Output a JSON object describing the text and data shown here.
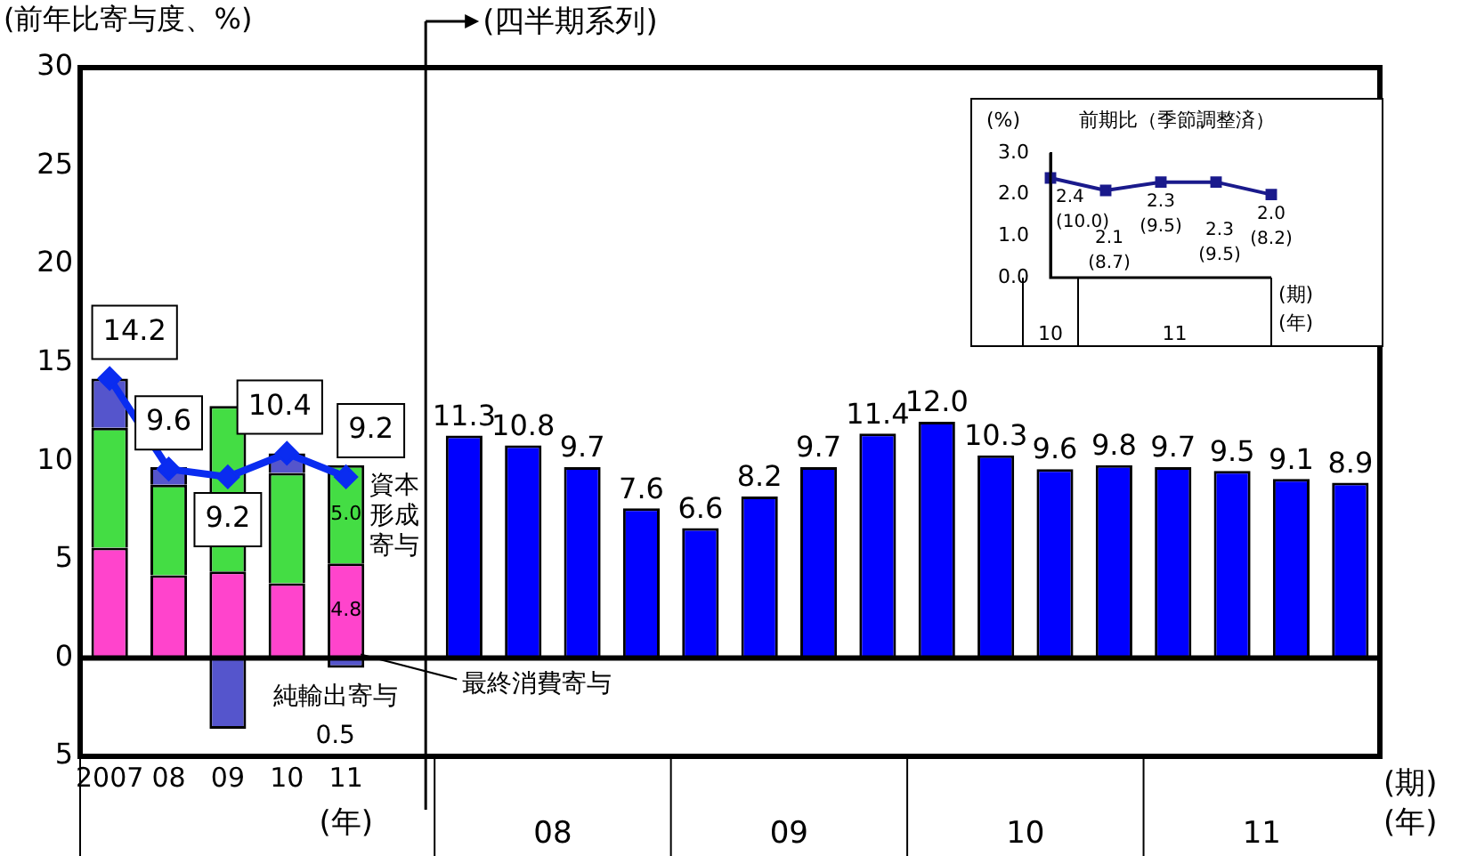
{
  "chart_data": [
    {
      "type": "bar",
      "stacked": true,
      "ylabel": "(前年比寄与度、%)",
      "legend": false,
      "grid": false,
      "marker": "diamond",
      "ylim": [
        -5,
        30
      ],
      "yticks": [
        {
          "value": -5,
          "label": "5"
        },
        0,
        5,
        10,
        15,
        20,
        25,
        30
      ],
      "categories": [
        "2007",
        "08",
        "09",
        "10",
        "11",
        null,
        null,
        null,
        null,
        null,
        null,
        null,
        null,
        null,
        null,
        null,
        null,
        null,
        null,
        null,
        null,
        null
      ],
      "series": [
        {
          "name": "最終消費寄与",
          "color": "#ff44cc",
          "values": [
            5.6,
            4.2,
            4.4,
            3.8,
            4.8,
            null,
            null,
            null,
            null,
            null,
            null,
            null,
            null,
            null,
            null,
            null,
            null,
            null,
            null,
            null,
            null,
            null
          ],
          "value_labels": [
            null,
            null,
            null,
            null,
            "4.8",
            null,
            null,
            null,
            null,
            null,
            null,
            null,
            null,
            null,
            null,
            null,
            null,
            null,
            null,
            null,
            null,
            null
          ]
        },
        {
          "name": "資本形成寄与",
          "color": "#44dd44",
          "values": [
            6.1,
            4.6,
            8.4,
            5.6,
            5.0,
            null,
            null,
            null,
            null,
            null,
            null,
            null,
            null,
            null,
            null,
            null,
            null,
            null,
            null,
            null,
            null,
            null
          ],
          "value_labels": [
            null,
            null,
            null,
            null,
            "5.0",
            null,
            null,
            null,
            null,
            null,
            null,
            null,
            null,
            null,
            null,
            null,
            null,
            null,
            null,
            null,
            null,
            null
          ]
        },
        {
          "name": "純輸出寄与",
          "color": "#5555cc",
          "values": [
            2.5,
            0.9,
            -3.6,
            1.0,
            -0.5,
            null,
            null,
            null,
            null,
            null,
            null,
            null,
            null,
            null,
            null,
            null,
            null,
            null,
            null,
            null,
            null,
            null
          ],
          "value_labels": [
            null,
            null,
            null,
            null,
            null,
            null,
            null,
            null,
            null,
            null,
            null,
            null,
            null,
            null,
            null,
            null,
            null,
            null,
            null,
            null,
            null,
            null
          ]
        },
        {
          "color": "#0000ff",
          "values": [
            null,
            null,
            null,
            null,
            null,
            null,
            11.3,
            10.8,
            9.7,
            7.6,
            6.6,
            8.2,
            9.7,
            11.4,
            12.0,
            10.3,
            9.6,
            9.8,
            9.7,
            9.5,
            9.1,
            8.9
          ],
          "value_labels": [
            null,
            null,
            null,
            null,
            null,
            null,
            "11.3",
            "10.8",
            "9.7",
            "7.6",
            "6.6",
            "8.2",
            "9.7",
            "11.4",
            "12.0",
            "10.3",
            "9.6",
            "9.8",
            "9.7",
            "9.5",
            "9.1",
            "8.9"
          ]
        },
        {
          "type": "line",
          "color": "#0a2cf0",
          "values": [
            14.2,
            9.6,
            9.2,
            10.4,
            9.2,
            null,
            null,
            null,
            null,
            null,
            null,
            null,
            null,
            null,
            null,
            null,
            null,
            null,
            null,
            null,
            null,
            null
          ],
          "value_labels": [
            "14.2",
            "9.6",
            "9.2",
            "10.4",
            "9.2",
            null,
            null,
            null,
            null,
            null,
            null,
            null,
            null,
            null,
            null,
            null,
            null,
            null,
            null,
            null,
            null,
            null
          ]
        }
      ],
      "annotations": [
        "(四半期系列)",
        "(年)",
        "(期)",
        "(年)",
        "08",
        "09",
        "10",
        "11",
        "0.5"
      ]
    },
    {
      "type": "line",
      "title": "前期比（季節調整済）",
      "ylabel": "(%)",
      "legend": false,
      "grid": false,
      "marker": "square",
      "ylim": [
        0,
        3
      ],
      "yticks": [
        {
          "value": 0,
          "label": "0.0"
        },
        {
          "value": 1,
          "label": "1.0"
        },
        {
          "value": 2,
          "label": "2.0"
        },
        {
          "value": 3,
          "label": "3.0"
        }
      ],
      "categories": [
        null,
        null,
        null,
        null,
        null
      ],
      "series": [
        {
          "color": "#1a1a8c",
          "values": [
            2.4,
            2.1,
            2.3,
            2.3,
            2.0
          ],
          "value_labels": [
            "2.4\n(10.0)",
            "2.1\n(8.7)",
            "2.3\n(9.5)",
            "2.3\n(9.5)",
            "2.0\n(8.2)"
          ]
        }
      ],
      "annotations": [
        "10",
        "11",
        "(期)",
        "(年)"
      ]
    }
  ]
}
